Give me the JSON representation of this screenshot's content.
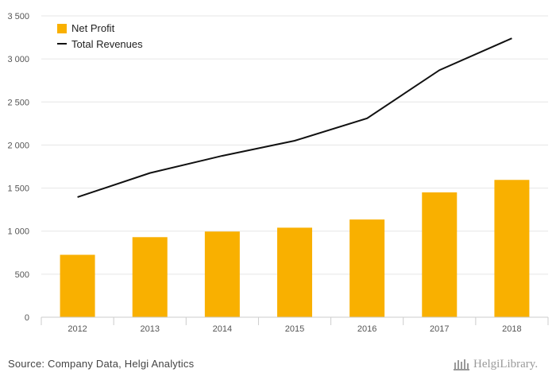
{
  "chart_data": {
    "type": "bar",
    "categories": [
      "2012",
      "2013",
      "2014",
      "2015",
      "2016",
      "2017",
      "2018"
    ],
    "series": [
      {
        "name": "Net Profit",
        "kind": "bar",
        "color": "#F9B000",
        "values": [
          725,
          930,
          995,
          1040,
          1135,
          1450,
          1595
        ]
      },
      {
        "name": "Total Revenues",
        "kind": "line",
        "color": "#111111",
        "values": [
          1395,
          1675,
          1875,
          2050,
          2310,
          2870,
          3240
        ]
      }
    ],
    "ylim": [
      0,
      3500
    ],
    "yticks": [
      0,
      500,
      1000,
      1500,
      2000,
      2500,
      3000,
      3500
    ],
    "ytick_labels": [
      "0",
      "500",
      "1 000",
      "1 500",
      "2 000",
      "2 500",
      "3 000",
      "3 500"
    ],
    "grid": true,
    "legend_position": "top-left",
    "title": "",
    "xlabel": "",
    "ylabel": ""
  },
  "footer": {
    "source": "Source: Company Data, Helgi Analytics",
    "logo_text": "HelgiLibrary."
  }
}
